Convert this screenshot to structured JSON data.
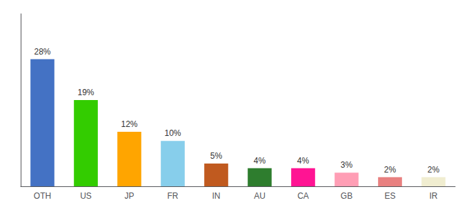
{
  "chart_data": {
    "type": "bar",
    "categories": [
      "OTH",
      "US",
      "JP",
      "FR",
      "IN",
      "AU",
      "CA",
      "GB",
      "ES",
      "IR"
    ],
    "values": [
      28,
      19,
      12,
      10,
      5,
      4,
      4,
      3,
      2,
      2
    ],
    "value_labels": [
      "28%",
      "19%",
      "12%",
      "10%",
      "5%",
      "4%",
      "4%",
      "3%",
      "2%",
      "2%"
    ],
    "data_labels": true,
    "colors": [
      "#4472C4",
      "#33CC00",
      "#FFA500",
      "#87CEEB",
      "#C05A1F",
      "#2E7D2E",
      "#FF1493",
      "#FF9EB5",
      "#E88080",
      "#F0EDD0"
    ],
    "ylim": [
      0,
      38
    ],
    "grid": false,
    "tick_labels": "x"
  }
}
